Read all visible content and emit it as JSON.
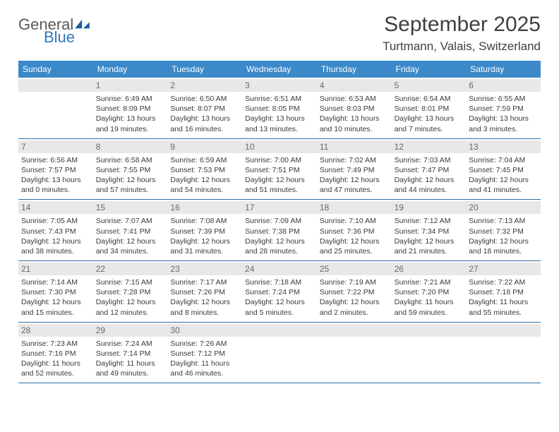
{
  "logo": {
    "word1": "General",
    "word2": "Blue"
  },
  "title": "September 2025",
  "location": "Turtmann, Valais, Switzerland",
  "colors": {
    "header_bg": "#3b89c9",
    "header_text": "#ffffff",
    "daynum_bg": "#e8e8e8",
    "daynum_text": "#6a6a6a",
    "rule": "#2f6ea8",
    "body_text": "#333333",
    "logo_gray": "#5a5a5a",
    "logo_blue": "#2f78c2",
    "page_bg": "#ffffff"
  },
  "layout": {
    "columns": 7,
    "weeks": 5,
    "info_fontsize_pt": 8,
    "daynum_fontsize_pt": 9,
    "header_fontsize_pt": 9,
    "title_fontsize_pt": 22,
    "location_fontsize_pt": 13
  },
  "day_labels": [
    "Sunday",
    "Monday",
    "Tuesday",
    "Wednesday",
    "Thursday",
    "Friday",
    "Saturday"
  ],
  "weeks": [
    [
      {
        "n": "",
        "sunrise": "",
        "sunset": "",
        "daylight1": "",
        "daylight2": ""
      },
      {
        "n": "1",
        "sunrise": "Sunrise: 6:49 AM",
        "sunset": "Sunset: 8:09 PM",
        "daylight1": "Daylight: 13 hours",
        "daylight2": "and 19 minutes."
      },
      {
        "n": "2",
        "sunrise": "Sunrise: 6:50 AM",
        "sunset": "Sunset: 8:07 PM",
        "daylight1": "Daylight: 13 hours",
        "daylight2": "and 16 minutes."
      },
      {
        "n": "3",
        "sunrise": "Sunrise: 6:51 AM",
        "sunset": "Sunset: 8:05 PM",
        "daylight1": "Daylight: 13 hours",
        "daylight2": "and 13 minutes."
      },
      {
        "n": "4",
        "sunrise": "Sunrise: 6:53 AM",
        "sunset": "Sunset: 8:03 PM",
        "daylight1": "Daylight: 13 hours",
        "daylight2": "and 10 minutes."
      },
      {
        "n": "5",
        "sunrise": "Sunrise: 6:54 AM",
        "sunset": "Sunset: 8:01 PM",
        "daylight1": "Daylight: 13 hours",
        "daylight2": "and 7 minutes."
      },
      {
        "n": "6",
        "sunrise": "Sunrise: 6:55 AM",
        "sunset": "Sunset: 7:59 PM",
        "daylight1": "Daylight: 13 hours",
        "daylight2": "and 3 minutes."
      }
    ],
    [
      {
        "n": "7",
        "sunrise": "Sunrise: 6:56 AM",
        "sunset": "Sunset: 7:57 PM",
        "daylight1": "Daylight: 13 hours",
        "daylight2": "and 0 minutes."
      },
      {
        "n": "8",
        "sunrise": "Sunrise: 6:58 AM",
        "sunset": "Sunset: 7:55 PM",
        "daylight1": "Daylight: 12 hours",
        "daylight2": "and 57 minutes."
      },
      {
        "n": "9",
        "sunrise": "Sunrise: 6:59 AM",
        "sunset": "Sunset: 7:53 PM",
        "daylight1": "Daylight: 12 hours",
        "daylight2": "and 54 minutes."
      },
      {
        "n": "10",
        "sunrise": "Sunrise: 7:00 AM",
        "sunset": "Sunset: 7:51 PM",
        "daylight1": "Daylight: 12 hours",
        "daylight2": "and 51 minutes."
      },
      {
        "n": "11",
        "sunrise": "Sunrise: 7:02 AM",
        "sunset": "Sunset: 7:49 PM",
        "daylight1": "Daylight: 12 hours",
        "daylight2": "and 47 minutes."
      },
      {
        "n": "12",
        "sunrise": "Sunrise: 7:03 AM",
        "sunset": "Sunset: 7:47 PM",
        "daylight1": "Daylight: 12 hours",
        "daylight2": "and 44 minutes."
      },
      {
        "n": "13",
        "sunrise": "Sunrise: 7:04 AM",
        "sunset": "Sunset: 7:45 PM",
        "daylight1": "Daylight: 12 hours",
        "daylight2": "and 41 minutes."
      }
    ],
    [
      {
        "n": "14",
        "sunrise": "Sunrise: 7:05 AM",
        "sunset": "Sunset: 7:43 PM",
        "daylight1": "Daylight: 12 hours",
        "daylight2": "and 38 minutes."
      },
      {
        "n": "15",
        "sunrise": "Sunrise: 7:07 AM",
        "sunset": "Sunset: 7:41 PM",
        "daylight1": "Daylight: 12 hours",
        "daylight2": "and 34 minutes."
      },
      {
        "n": "16",
        "sunrise": "Sunrise: 7:08 AM",
        "sunset": "Sunset: 7:39 PM",
        "daylight1": "Daylight: 12 hours",
        "daylight2": "and 31 minutes."
      },
      {
        "n": "17",
        "sunrise": "Sunrise: 7:09 AM",
        "sunset": "Sunset: 7:38 PM",
        "daylight1": "Daylight: 12 hours",
        "daylight2": "and 28 minutes."
      },
      {
        "n": "18",
        "sunrise": "Sunrise: 7:10 AM",
        "sunset": "Sunset: 7:36 PM",
        "daylight1": "Daylight: 12 hours",
        "daylight2": "and 25 minutes."
      },
      {
        "n": "19",
        "sunrise": "Sunrise: 7:12 AM",
        "sunset": "Sunset: 7:34 PM",
        "daylight1": "Daylight: 12 hours",
        "daylight2": "and 21 minutes."
      },
      {
        "n": "20",
        "sunrise": "Sunrise: 7:13 AM",
        "sunset": "Sunset: 7:32 PM",
        "daylight1": "Daylight: 12 hours",
        "daylight2": "and 18 minutes."
      }
    ],
    [
      {
        "n": "21",
        "sunrise": "Sunrise: 7:14 AM",
        "sunset": "Sunset: 7:30 PM",
        "daylight1": "Daylight: 12 hours",
        "daylight2": "and 15 minutes."
      },
      {
        "n": "22",
        "sunrise": "Sunrise: 7:15 AM",
        "sunset": "Sunset: 7:28 PM",
        "daylight1": "Daylight: 12 hours",
        "daylight2": "and 12 minutes."
      },
      {
        "n": "23",
        "sunrise": "Sunrise: 7:17 AM",
        "sunset": "Sunset: 7:26 PM",
        "daylight1": "Daylight: 12 hours",
        "daylight2": "and 8 minutes."
      },
      {
        "n": "24",
        "sunrise": "Sunrise: 7:18 AM",
        "sunset": "Sunset: 7:24 PM",
        "daylight1": "Daylight: 12 hours",
        "daylight2": "and 5 minutes."
      },
      {
        "n": "25",
        "sunrise": "Sunrise: 7:19 AM",
        "sunset": "Sunset: 7:22 PM",
        "daylight1": "Daylight: 12 hours",
        "daylight2": "and 2 minutes."
      },
      {
        "n": "26",
        "sunrise": "Sunrise: 7:21 AM",
        "sunset": "Sunset: 7:20 PM",
        "daylight1": "Daylight: 11 hours",
        "daylight2": "and 59 minutes."
      },
      {
        "n": "27",
        "sunrise": "Sunrise: 7:22 AM",
        "sunset": "Sunset: 7:18 PM",
        "daylight1": "Daylight: 11 hours",
        "daylight2": "and 55 minutes."
      }
    ],
    [
      {
        "n": "28",
        "sunrise": "Sunrise: 7:23 AM",
        "sunset": "Sunset: 7:16 PM",
        "daylight1": "Daylight: 11 hours",
        "daylight2": "and 52 minutes."
      },
      {
        "n": "29",
        "sunrise": "Sunrise: 7:24 AM",
        "sunset": "Sunset: 7:14 PM",
        "daylight1": "Daylight: 11 hours",
        "daylight2": "and 49 minutes."
      },
      {
        "n": "30",
        "sunrise": "Sunrise: 7:26 AM",
        "sunset": "Sunset: 7:12 PM",
        "daylight1": "Daylight: 11 hours",
        "daylight2": "and 46 minutes."
      },
      {
        "n": "",
        "sunrise": "",
        "sunset": "",
        "daylight1": "",
        "daylight2": ""
      },
      {
        "n": "",
        "sunrise": "",
        "sunset": "",
        "daylight1": "",
        "daylight2": ""
      },
      {
        "n": "",
        "sunrise": "",
        "sunset": "",
        "daylight1": "",
        "daylight2": ""
      },
      {
        "n": "",
        "sunrise": "",
        "sunset": "",
        "daylight1": "",
        "daylight2": ""
      }
    ]
  ]
}
